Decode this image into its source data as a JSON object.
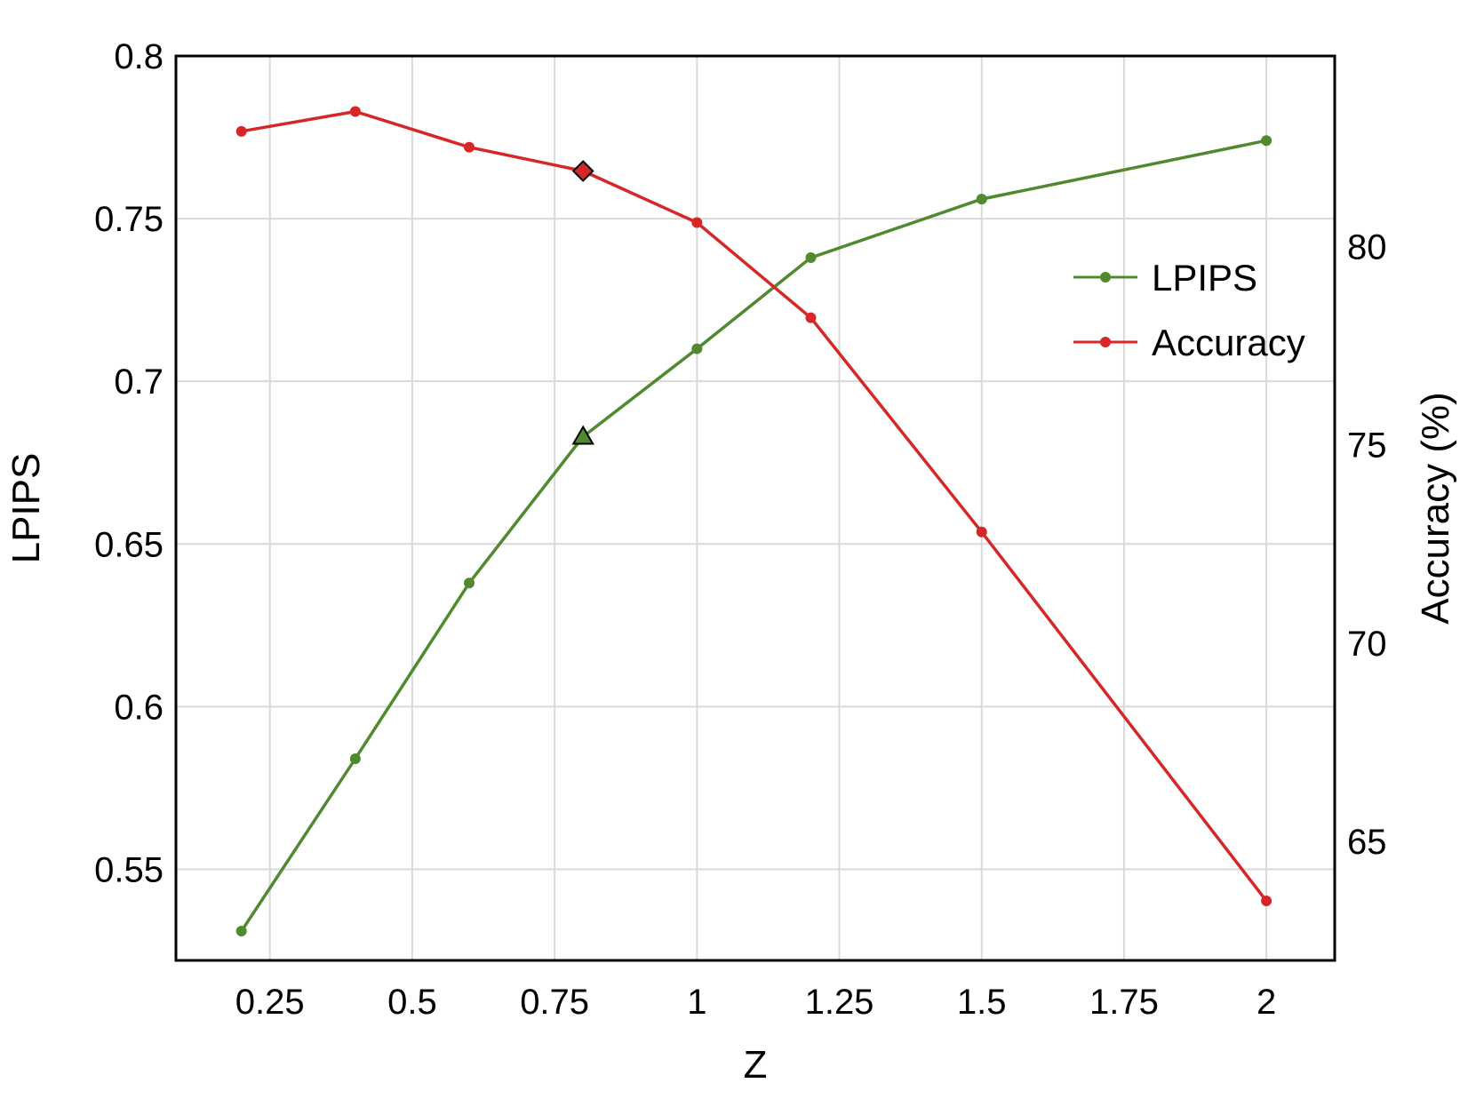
{
  "chart_data": {
    "type": "line",
    "xlabel": "Z",
    "ylabel_left": "LPIPS",
    "ylabel_right": "Accuracy (%)",
    "x_ticks": [
      "0.25",
      "0.5",
      "0.75",
      "1",
      "1.25",
      "1.5",
      "1.75",
      "2"
    ],
    "y_left_ticks": [
      "0.55",
      "0.6",
      "0.65",
      "0.7",
      "0.75",
      "0.8"
    ],
    "y_right_ticks": [
      "65",
      "70",
      "75",
      "80"
    ],
    "xlim": [
      0.085,
      2.12
    ],
    "ylim_left": [
      0.522,
      0.8
    ],
    "ylim_right": [
      62.0,
      84.8
    ],
    "grid": true,
    "legend_position": "upper-right",
    "x": [
      0.2,
      0.4,
      0.6,
      0.8,
      1.0,
      1.2,
      1.5,
      2.0
    ],
    "series": [
      {
        "name": "LPIPS",
        "axis": "left",
        "color": "#4f8a2f",
        "values": [
          0.531,
          0.584,
          0.638,
          0.683,
          0.71,
          0.738,
          0.756,
          0.774
        ],
        "highlight_index": 3,
        "highlight_marker": "triangle"
      },
      {
        "name": "Accuracy",
        "axis": "right",
        "color": "#d62728",
        "values": [
          82.9,
          83.4,
          82.5,
          81.9,
          80.6,
          78.2,
          72.8,
          63.5
        ],
        "highlight_index": 3,
        "highlight_marker": "diamond"
      }
    ]
  }
}
